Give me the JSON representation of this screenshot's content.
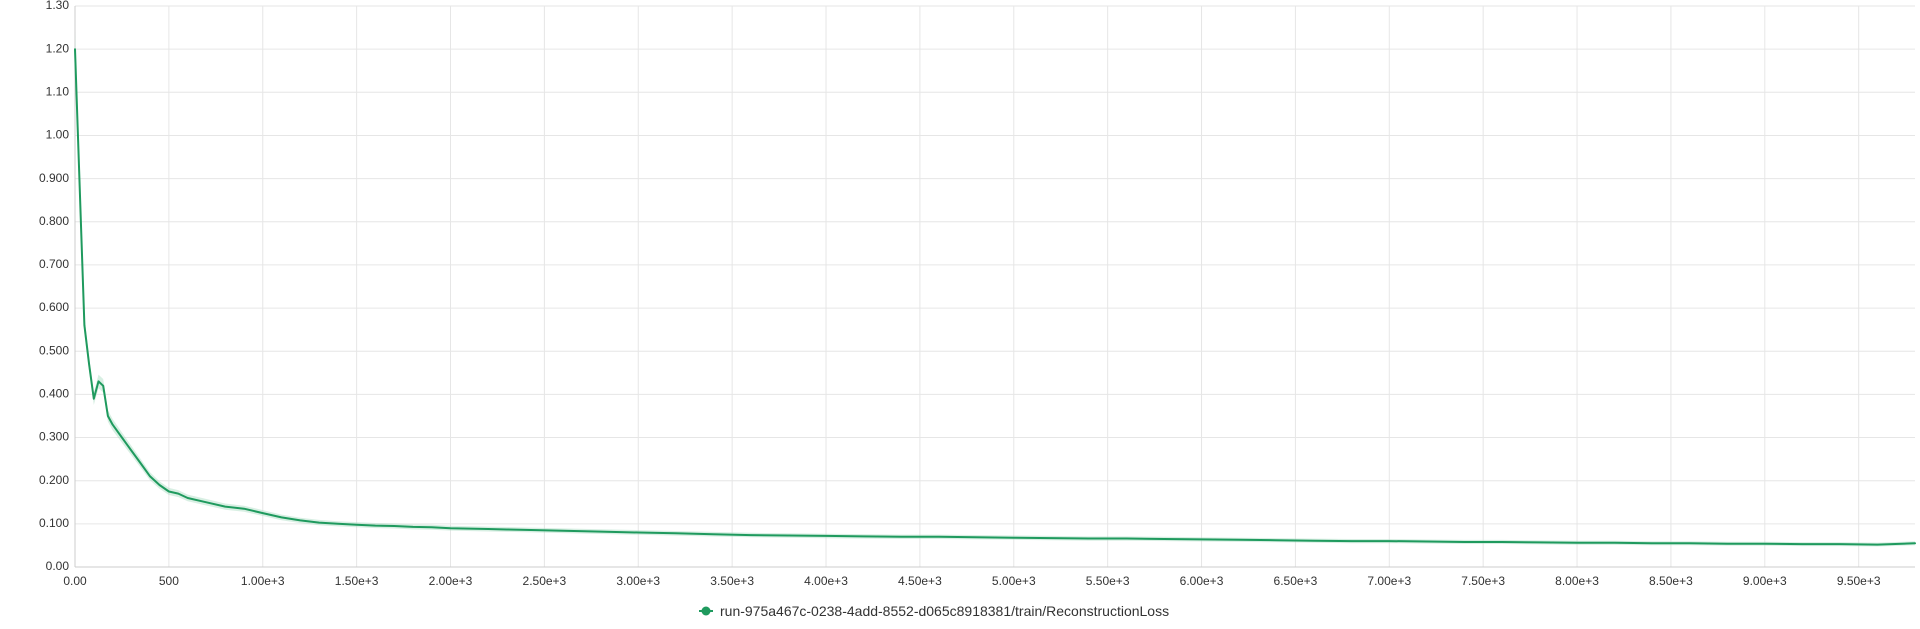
{
  "colors": {
    "series": "#1f9a5e",
    "band": "#a8dcc0",
    "grid": "#e6e6e6",
    "axis": "#cccccc",
    "text": "#333333"
  },
  "legend": {
    "position": "bottom-center",
    "label": "run-975a467c-0238-4add-8552-d065c8918381/train/ReconstructionLoss"
  },
  "chart_data": {
    "type": "line",
    "title": "",
    "xlabel": "",
    "ylabel": "",
    "xlim": [
      0,
      9800
    ],
    "ylim": [
      0,
      1.3
    ],
    "grid": true,
    "legend_position": "bottom-center",
    "x_ticks": [
      0,
      500,
      1000,
      1500,
      2000,
      2500,
      3000,
      3500,
      4000,
      4500,
      5000,
      5500,
      6000,
      6500,
      7000,
      7500,
      8000,
      8500,
      9000,
      9500
    ],
    "x_tick_labels": [
      "0.00",
      "500",
      "1.00e+3",
      "1.50e+3",
      "2.00e+3",
      "2.50e+3",
      "3.00e+3",
      "3.50e+3",
      "4.00e+3",
      "4.50e+3",
      "5.00e+3",
      "5.50e+3",
      "6.00e+3",
      "6.50e+3",
      "7.00e+3",
      "7.50e+3",
      "8.00e+3",
      "8.50e+3",
      "9.00e+3",
      "9.50e+3"
    ],
    "y_ticks": [
      0,
      0.1,
      0.2,
      0.3,
      0.4,
      0.5,
      0.6,
      0.7,
      0.8,
      0.9,
      1.0,
      1.1,
      1.2,
      1.3
    ],
    "y_tick_labels": [
      "0.00",
      "0.100",
      "0.200",
      "0.300",
      "0.400",
      "0.500",
      "0.600",
      "0.700",
      "0.800",
      "0.900",
      "1.00",
      "1.10",
      "1.20",
      "1.30"
    ],
    "series": [
      {
        "name": "run-975a467c-0238-4add-8552-d065c8918381/train/ReconstructionLoss",
        "x": [
          0,
          25,
          50,
          75,
          100,
          125,
          150,
          175,
          200,
          250,
          300,
          350,
          400,
          450,
          500,
          550,
          600,
          700,
          800,
          900,
          1000,
          1100,
          1200,
          1300,
          1400,
          1500,
          1600,
          1700,
          1800,
          1900,
          2000,
          2200,
          2300,
          2400,
          2600,
          2800,
          3000,
          3200,
          3400,
          3600,
          3800,
          4000,
          4200,
          4400,
          4600,
          4800,
          5000,
          5200,
          5400,
          5600,
          5800,
          6000,
          6200,
          6400,
          6600,
          6800,
          7000,
          7200,
          7400,
          7600,
          7800,
          8000,
          8200,
          8400,
          8600,
          8800,
          9000,
          9200,
          9400,
          9600,
          9800
        ],
        "y": [
          1.2,
          0.88,
          0.56,
          0.47,
          0.39,
          0.43,
          0.42,
          0.35,
          0.33,
          0.3,
          0.27,
          0.24,
          0.21,
          0.19,
          0.175,
          0.17,
          0.16,
          0.15,
          0.14,
          0.135,
          0.125,
          0.115,
          0.108,
          0.103,
          0.1,
          0.098,
          0.096,
          0.095,
          0.093,
          0.092,
          0.09,
          0.088,
          0.087,
          0.086,
          0.084,
          0.082,
          0.08,
          0.078,
          0.076,
          0.074,
          0.073,
          0.072,
          0.071,
          0.07,
          0.07,
          0.069,
          0.068,
          0.067,
          0.066,
          0.066,
          0.065,
          0.064,
          0.063,
          0.062,
          0.061,
          0.06,
          0.06,
          0.059,
          0.058,
          0.058,
          0.057,
          0.056,
          0.056,
          0.055,
          0.055,
          0.054,
          0.054,
          0.053,
          0.053,
          0.052,
          0.055
        ]
      }
    ]
  }
}
